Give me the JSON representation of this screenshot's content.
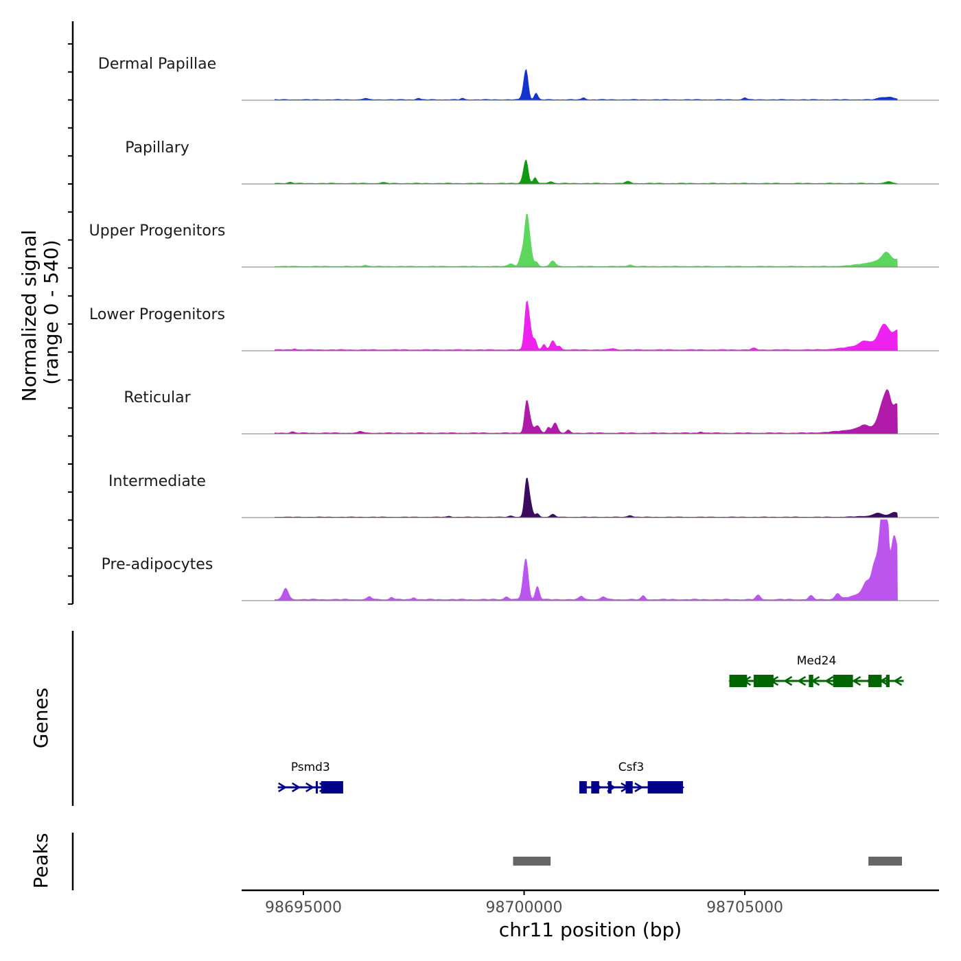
{
  "chart_data": {
    "type": "area",
    "title": "",
    "xlabel": "chr11 position (bp)",
    "ylabel_line1": "Normalized signal",
    "ylabel_line2": "(range 0 - 540)",
    "xlim": [
      98693600,
      98709400
    ],
    "signal_range": [
      0,
      540
    ],
    "x_ticks": [
      98695000,
      98700000,
      98705000
    ],
    "x_tick_labels": [
      "98695000",
      "98700000",
      "98705000"
    ],
    "data_extent": [
      98694350,
      98708460
    ],
    "genes_label": "Genes",
    "peaks_label": "Peaks",
    "series": [
      {
        "name": "Dermal Papillae",
        "color": "#1234cc",
        "base": 5,
        "noise": 5,
        "wide": [],
        "peaks": [
          [
            98700050,
            265,
            45
          ],
          [
            98700000,
            90,
            50
          ],
          [
            98700270,
            70,
            40
          ],
          [
            98708100,
            22,
            90
          ],
          [
            98708300,
            25,
            90
          ],
          [
            98705000,
            22,
            40
          ],
          [
            98701350,
            20,
            40
          ],
          [
            98696400,
            14,
            50
          ],
          [
            98697600,
            16,
            40
          ],
          [
            98698600,
            14,
            40
          ]
        ]
      },
      {
        "name": "Papillary",
        "color": "#119911",
        "base": 5,
        "noise": 5,
        "wide": [],
        "peaks": [
          [
            98700050,
            200,
            45
          ],
          [
            98700000,
            80,
            50
          ],
          [
            98700250,
            60,
            40
          ],
          [
            98700600,
            20,
            50
          ],
          [
            98702350,
            20,
            60
          ],
          [
            98708250,
            20,
            60
          ],
          [
            98694700,
            12,
            50
          ],
          [
            98696800,
            10,
            50
          ]
        ]
      },
      {
        "name": "Upper Progenitors",
        "color": "#5ed65e",
        "base": 6,
        "noise": 5,
        "wide": [
          [
            98708100,
            50,
            400
          ],
          [
            98708300,
            30,
            200
          ]
        ],
        "peaks": [
          [
            98700050,
            415,
            45
          ],
          [
            98700120,
            260,
            55
          ],
          [
            98699950,
            140,
            50
          ],
          [
            98700280,
            45,
            40
          ],
          [
            98700650,
            60,
            55
          ],
          [
            98699700,
            30,
            60
          ],
          [
            98702400,
            18,
            50
          ],
          [
            98708200,
            75,
            90
          ],
          [
            98708500,
            30,
            60
          ],
          [
            98696400,
            14,
            50
          ]
        ]
      },
      {
        "name": "Lower Progenitors",
        "color": "#ee22ee",
        "base": 9,
        "noise": 6,
        "wide": [
          [
            98707900,
            60,
            450
          ],
          [
            98708300,
            70,
            200
          ]
        ],
        "peaks": [
          [
            98700050,
            395,
            45
          ],
          [
            98700120,
            250,
            55
          ],
          [
            98700250,
            100,
            40
          ],
          [
            98700450,
            55,
            40
          ],
          [
            98700650,
            95,
            55
          ],
          [
            98700800,
            40,
            40
          ],
          [
            98708150,
            170,
            110
          ],
          [
            98708480,
            135,
            90
          ],
          [
            98707700,
            40,
            100
          ],
          [
            98702000,
            14,
            60
          ],
          [
            98705200,
            18,
            50
          ],
          [
            98694800,
            12,
            40
          ]
        ]
      },
      {
        "name": "Reticular",
        "color": "#b01aa8",
        "base": 7,
        "noise": 6,
        "wide": [
          [
            98707800,
            50,
            500
          ],
          [
            98708350,
            60,
            200
          ]
        ],
        "peaks": [
          [
            98700050,
            275,
            45
          ],
          [
            98700120,
            150,
            55
          ],
          [
            98700300,
            75,
            60
          ],
          [
            98700700,
            110,
            55
          ],
          [
            98700550,
            60,
            40
          ],
          [
            98701000,
            30,
            40
          ],
          [
            98708150,
            275,
            110
          ],
          [
            98708450,
            225,
            90
          ],
          [
            98708250,
            160,
            60
          ],
          [
            98707700,
            35,
            100
          ],
          [
            98696300,
            18,
            50
          ],
          [
            98694750,
            14,
            40
          ],
          [
            98704000,
            14,
            40
          ]
        ]
      },
      {
        "name": "Intermediate",
        "color": "#3a0b5e",
        "base": 4,
        "noise": 4,
        "wide": [
          [
            98708200,
            20,
            400
          ]
        ],
        "peaks": [
          [
            98700050,
            335,
            45
          ],
          [
            98700120,
            175,
            55
          ],
          [
            98700300,
            40,
            40
          ],
          [
            98700650,
            30,
            50
          ],
          [
            98702400,
            18,
            50
          ],
          [
            98699700,
            14,
            50
          ],
          [
            98708400,
            35,
            80
          ],
          [
            98708000,
            25,
            80
          ],
          [
            98698300,
            10,
            40
          ]
        ]
      },
      {
        "name": "Pre-adipocytes",
        "color": "#bb55ee",
        "base": 10,
        "noise": 8,
        "wide": [
          [
            98708150,
            150,
            300
          ],
          [
            98707800,
            50,
            350
          ]
        ],
        "peaks": [
          [
            98694600,
            120,
            60
          ],
          [
            98700050,
            325,
            50
          ],
          [
            98700000,
            150,
            55
          ],
          [
            98700300,
            140,
            45
          ],
          [
            98708200,
            800,
            45
          ],
          [
            98708150,
            500,
            60
          ],
          [
            98708080,
            380,
            55
          ],
          [
            98708350,
            380,
            55
          ],
          [
            98708420,
            300,
            50
          ],
          [
            98707950,
            230,
            70
          ],
          [
            98708500,
            270,
            45
          ],
          [
            98707750,
            80,
            70
          ],
          [
            98701300,
            35,
            50
          ],
          [
            98701800,
            30,
            50
          ],
          [
            98702700,
            40,
            40
          ],
          [
            98705300,
            45,
            50
          ],
          [
            98706500,
            40,
            50
          ],
          [
            98707100,
            60,
            50
          ],
          [
            98699600,
            30,
            50
          ],
          [
            98696500,
            30,
            50
          ],
          [
            98697000,
            25,
            40
          ],
          [
            98697500,
            22,
            40
          ]
        ]
      }
    ],
    "genes": [
      {
        "name": "Med24",
        "color": "#006400",
        "row": 1,
        "strand": "-",
        "start": 98704650,
        "end": 98708600,
        "exons": [
          [
            98704650,
            98705050
          ],
          [
            98705200,
            98705650
          ],
          [
            98706450,
            98706550
          ],
          [
            98707000,
            98707450
          ],
          [
            98707800,
            98708100
          ],
          [
            98708200,
            98708280
          ]
        ]
      },
      {
        "name": "Psmd3",
        "color": "#00008b",
        "row": 2,
        "strand": "+",
        "start": 98694420,
        "end": 98695900,
        "exons": [
          [
            98695400,
            98695900
          ],
          [
            98695280,
            98695310
          ]
        ]
      },
      {
        "name": "Csf3",
        "color": "#00008b",
        "row": 2,
        "strand": "+",
        "start": 98701250,
        "end": 98703600,
        "exons": [
          [
            98701250,
            98701420
          ],
          [
            98701520,
            98701700
          ],
          [
            98701900,
            98701980
          ],
          [
            98702300,
            98702460
          ],
          [
            98702800,
            98703600
          ]
        ]
      }
    ],
    "peaks": [
      [
        98699750,
        98700600
      ],
      [
        98707800,
        98708560
      ]
    ]
  }
}
